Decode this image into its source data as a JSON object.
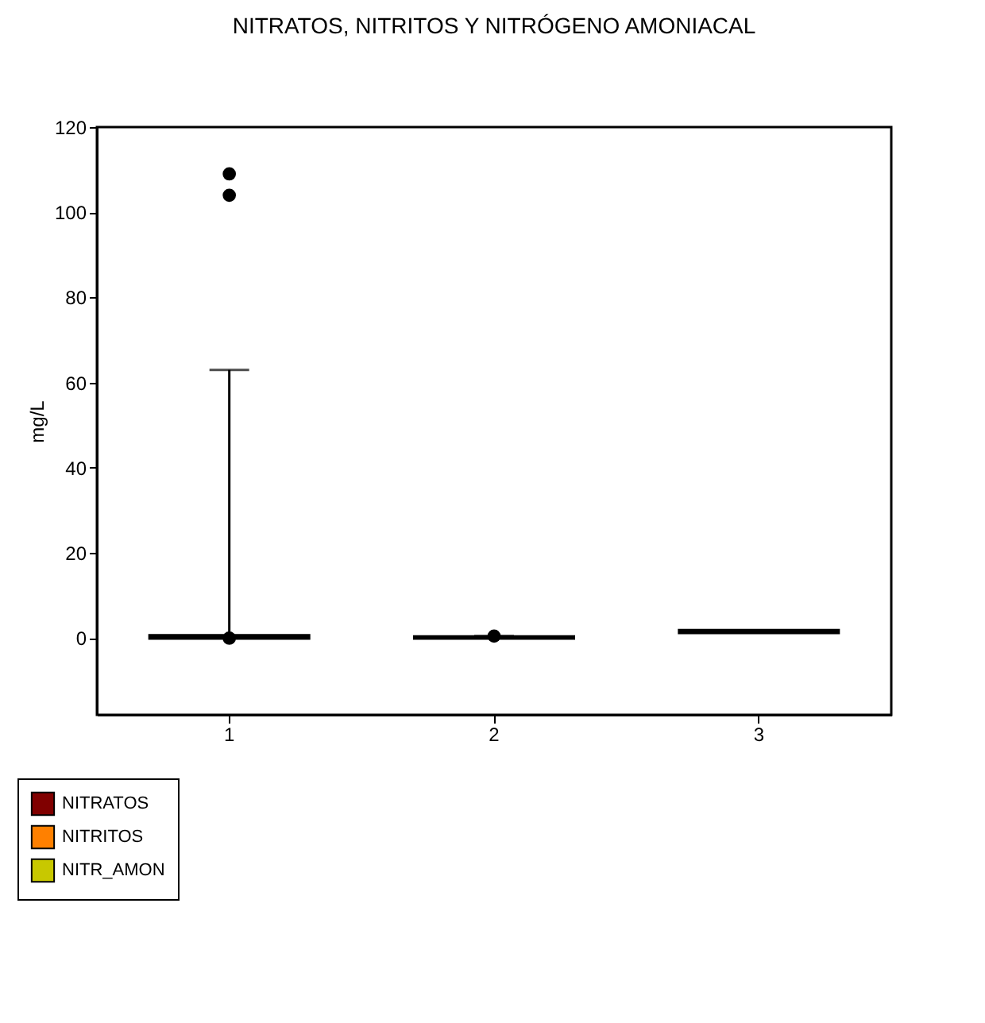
{
  "chart_data": {
    "type": "box",
    "title": "NITRATOS, NITRITOS Y NITRÓGENO AMONIACAL",
    "ylabel": "mg/L",
    "categories": [
      "1",
      "2",
      "3"
    ],
    "series": [
      {
        "name": "NITRATOS",
        "color": "#800000",
        "boxes": [
          {
            "low": 0,
            "q1": 0,
            "median": 0.3,
            "q3": 0.6,
            "high": 63,
            "outliers": [
              0,
              104,
              109
            ]
          },
          null,
          null
        ]
      },
      {
        "name": "NITRITOS",
        "color": "#ff8000",
        "boxes": [
          null,
          {
            "low": 0,
            "q1": 0,
            "median": 0.1,
            "q3": 0.3,
            "high": 0.5,
            "outliers": [
              0.5
            ]
          },
          null
        ]
      },
      {
        "name": "NITR_AMON",
        "color": "#c8c800",
        "boxes": [
          null,
          null,
          {
            "low": 1.3,
            "q1": 1.3,
            "median": 1.5,
            "q3": 1.8,
            "high": 1.8
          }
        ]
      }
    ],
    "ylim": [
      -18,
      120
    ],
    "yticks": [
      0,
      20,
      40,
      60,
      80,
      100,
      120
    ],
    "grid": false,
    "legend": "bottom left"
  }
}
